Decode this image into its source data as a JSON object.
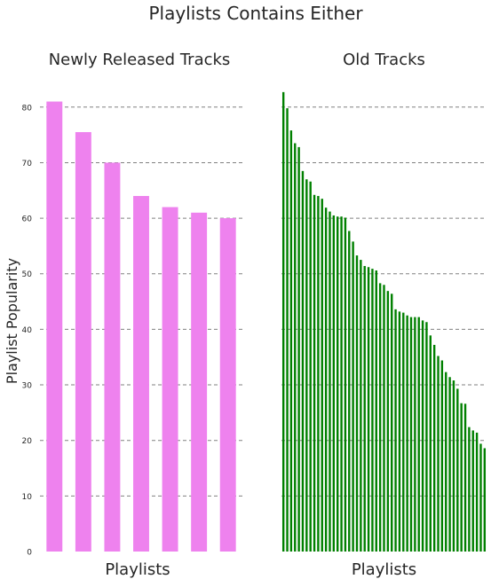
{
  "suptitle": "Playlists Contains Either",
  "chart_data": [
    {
      "type": "bar",
      "title": "Newly Released Tracks",
      "xlabel": "Playlists",
      "ylabel": "Playlist Popularity",
      "ylim": [
        0,
        83
      ],
      "yticks": [
        0,
        10,
        20,
        30,
        40,
        50,
        60,
        70,
        80
      ],
      "grid": "y-dashed",
      "color": "#ee82ee",
      "values": [
        81,
        75.5,
        70,
        64,
        62,
        61,
        60
      ]
    },
    {
      "type": "bar",
      "title": "Old Tracks",
      "xlabel": "Playlists",
      "ylim": [
        0,
        83
      ],
      "yticks": [
        0,
        10,
        20,
        30,
        40,
        50,
        60,
        70,
        80
      ],
      "grid": "y-dashed",
      "color": "#008000",
      "values": [
        82.7,
        79.8,
        75.8,
        73.5,
        72.8,
        68.5,
        67,
        66.6,
        64.2,
        64,
        63.5,
        61.9,
        61.2,
        60.5,
        60.3,
        60.3,
        60.1,
        57.7,
        55.8,
        53.3,
        52.5,
        51.4,
        51.2,
        50.9,
        50.6,
        48.3,
        48,
        46.9,
        46.4,
        43.6,
        43.2,
        43,
        42.5,
        42.2,
        42.2,
        42.2,
        41.6,
        41.3,
        38.9,
        37.2,
        35.2,
        34.4,
        32.3,
        31.4,
        30.8,
        29.3,
        26.7,
        26.6,
        22.4,
        21.8,
        21.4,
        19.4,
        18.6
      ]
    }
  ]
}
